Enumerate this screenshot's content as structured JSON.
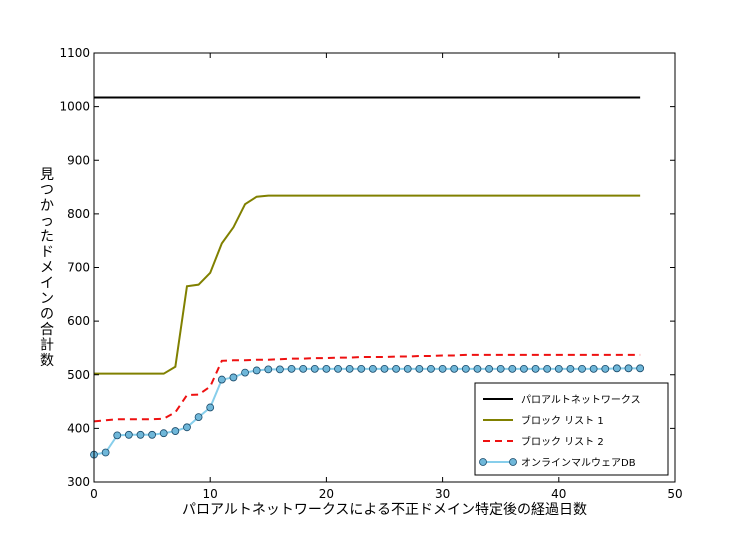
{
  "chart_data": {
    "type": "line",
    "title": "",
    "xlabel": "パロアルトネットワークスによる不正ドメイン特定後の経過日数",
    "ylabel": "見つかったドメインの合計数",
    "xlim": [
      0,
      50
    ],
    "ylim": [
      300,
      1100
    ],
    "xticks": [
      "0",
      "10",
      "20",
      "30",
      "40",
      "50"
    ],
    "yticks": [
      "300",
      "400",
      "500",
      "600",
      "700",
      "800",
      "900",
      "1000",
      "1100"
    ],
    "grid": false,
    "legend_position": "bottom-right",
    "x": [
      0,
      1,
      2,
      3,
      4,
      5,
      6,
      7,
      8,
      9,
      10,
      11,
      12,
      13,
      14,
      15,
      16,
      17,
      18,
      19,
      20,
      21,
      22,
      23,
      24,
      25,
      26,
      27,
      28,
      29,
      30,
      31,
      32,
      33,
      34,
      35,
      36,
      37,
      38,
      39,
      40,
      41,
      42,
      43,
      44,
      45,
      46,
      47
    ],
    "series": [
      {
        "name": "パロアルトネットワークス",
        "color": "#000000",
        "style": "solid",
        "values": [
          1017,
          1017,
          1017,
          1017,
          1017,
          1017,
          1017,
          1017,
          1017,
          1017,
          1017,
          1017,
          1017,
          1017,
          1017,
          1017,
          1017,
          1017,
          1017,
          1017,
          1017,
          1017,
          1017,
          1017,
          1017,
          1017,
          1017,
          1017,
          1017,
          1017,
          1017,
          1017,
          1017,
          1017,
          1017,
          1017,
          1017,
          1017,
          1017,
          1017,
          1017,
          1017,
          1017,
          1017,
          1017,
          1017,
          1017,
          1017
        ]
      },
      {
        "name": "ブロック リスト 1",
        "color": "#808000",
        "style": "solid",
        "values": [
          502,
          502,
          502,
          502,
          502,
          502,
          502,
          515,
          665,
          668,
          690,
          745,
          775,
          818,
          832,
          834,
          834,
          834,
          834,
          834,
          834,
          834,
          834,
          834,
          834,
          834,
          834,
          834,
          834,
          834,
          834,
          834,
          834,
          834,
          834,
          834,
          834,
          834,
          834,
          834,
          834,
          834,
          834,
          834,
          834,
          834,
          834,
          834
        ]
      },
      {
        "name": "ブロック リスト 2",
        "color": "#ee1111",
        "style": "dashed",
        "values": [
          413,
          415,
          417,
          417,
          417,
          417,
          418,
          430,
          462,
          463,
          478,
          526,
          527,
          527,
          528,
          528,
          529,
          530,
          530,
          531,
          531,
          532,
          532,
          533,
          533,
          533,
          534,
          534,
          535,
          535,
          536,
          536,
          537,
          537,
          537,
          537,
          537,
          537,
          537,
          537,
          537,
          537,
          537,
          537,
          537,
          537,
          537,
          537
        ]
      },
      {
        "name": "オンラインマルウェアDB",
        "color": "#87ceeb",
        "marker_color": "#6fb7d9",
        "style": "solid-marker",
        "values": [
          351,
          355,
          387,
          388,
          388,
          388,
          391,
          395,
          402,
          421,
          439,
          491,
          495,
          504,
          508,
          510,
          510,
          511,
          511,
          511,
          511,
          511,
          511,
          511,
          511,
          511,
          511,
          511,
          511,
          511,
          511,
          511,
          511,
          511,
          511,
          511,
          511,
          511,
          511,
          511,
          511,
          511,
          511,
          511,
          511,
          512,
          512,
          512
        ]
      }
    ]
  }
}
